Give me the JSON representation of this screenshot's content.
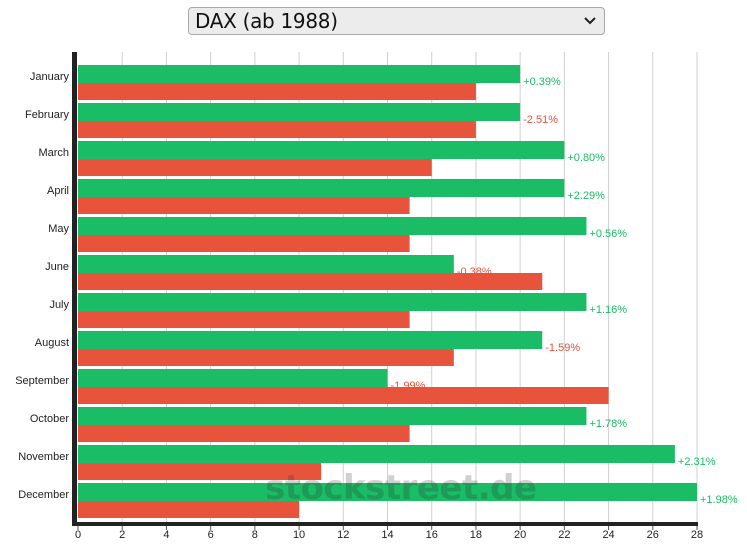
{
  "selector": {
    "label": "DAX (ab 1988)"
  },
  "chart_data": {
    "type": "bar",
    "orientation": "horizontal",
    "categories": [
      "January",
      "February",
      "March",
      "April",
      "May",
      "June",
      "July",
      "August",
      "September",
      "October",
      "November",
      "December"
    ],
    "series": [
      {
        "values": [
          20,
          20,
          22,
          22,
          23,
          17,
          23,
          21,
          14,
          23,
          27,
          28
        ]
      },
      {
        "values": [
          18,
          18,
          16,
          15,
          15,
          21,
          15,
          17,
          24,
          15,
          11,
          10
        ]
      }
    ],
    "data_labels": [
      "+0.39%",
      "-2.51%",
      "+0.80%",
      "+2.29%",
      "+0.56%",
      "-0.38%",
      "+1.16%",
      "-1.59%",
      "-1.99%",
      "+1.78%",
      "+2.31%",
      "+1.98%"
    ],
    "x_ticks": [
      "0",
      "2",
      "4",
      "6",
      "8",
      "10",
      "12",
      "14",
      "16",
      "18",
      "20",
      "22",
      "24",
      "26",
      "28"
    ],
    "xlim": [
      0,
      28
    ],
    "grid": true,
    "colors": {
      "positive": "#1abc65",
      "negative": "#e8533b",
      "label_positive": "#1abc65",
      "label_negative": "#e8533b",
      "axis": "#222222",
      "grid": "#d0d0d0"
    }
  },
  "watermark": "stockstreet.de"
}
